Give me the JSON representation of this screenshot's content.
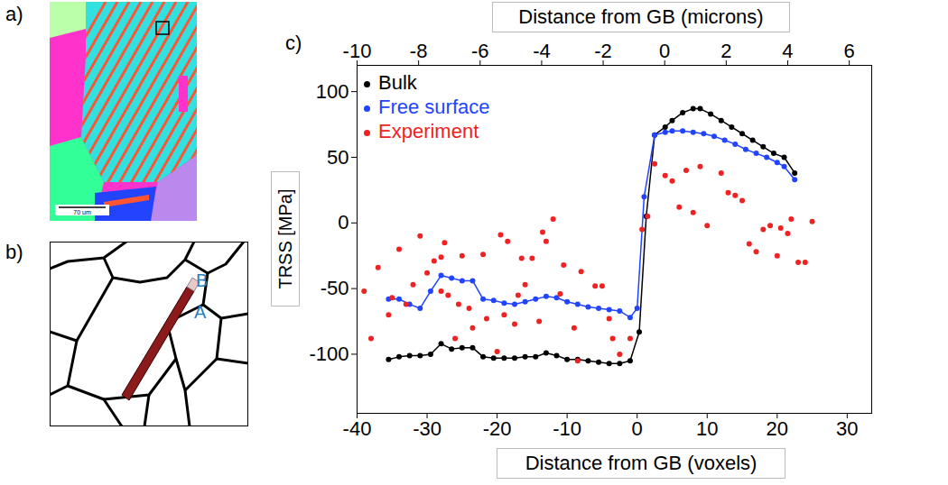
{
  "panels": {
    "a": {
      "label": "a)",
      "scale_bar": "70 um"
    },
    "b": {
      "label": "b)",
      "labels": [
        "B",
        "A"
      ]
    },
    "c": {
      "label": "c)"
    }
  },
  "chart_data": {
    "type": "line",
    "x_label": "Distance from GB (voxels)",
    "x2_label": "Distance from GB (microns)",
    "y_label": "TRSS [MPa]",
    "xlim": [
      -40,
      33.5
    ],
    "xticks": [
      -40,
      -30,
      -20,
      -10,
      0,
      10,
      20,
      30
    ],
    "x2lim": [
      -10,
      6.73
    ],
    "x2ticks": [
      -10,
      -8,
      -6,
      -4,
      -2,
      0,
      2,
      4,
      6
    ],
    "ylim": [
      -145,
      120
    ],
    "yticks": [
      -100,
      -50,
      0,
      50,
      100
    ],
    "legend": "top-left",
    "series": [
      {
        "name": "Bulk",
        "color": "#000000",
        "type": "line",
        "marker": "circle",
        "x": [
          -35.5,
          -34,
          -32.5,
          -31,
          -29.5,
          -28,
          -26.5,
          -25,
          -23.5,
          -22,
          -20.5,
          -19,
          -17.5,
          -16,
          -14.5,
          -13,
          -11.5,
          -10,
          -8.5,
          -7,
          -5.5,
          -4,
          -2.5,
          -1,
          0.3,
          1.3,
          2.5,
          4,
          5,
          6.5,
          8,
          9,
          10.5,
          12,
          13.5,
          15,
          16.5,
          18,
          19.5,
          21,
          22.5
        ],
        "values": [
          -104,
          -102,
          -101,
          -101,
          -100,
          -92,
          -96,
          -95,
          -95,
          -102,
          -103,
          -103,
          -103,
          -102,
          -102,
          -99,
          -101,
          -104,
          -104,
          -105,
          -106,
          -107,
          -107,
          -105,
          -83,
          5,
          67,
          73,
          78,
          84,
          87,
          87,
          83,
          78,
          73,
          68,
          63,
          58,
          53,
          50,
          38
        ]
      },
      {
        "name": "Free surface",
        "color": "#2244ff",
        "type": "line",
        "marker": "circle",
        "x": [
          -35.5,
          -34,
          -32.5,
          -31,
          -29.5,
          -28,
          -26.5,
          -25,
          -23.5,
          -22,
          -20.5,
          -19,
          -17.5,
          -16,
          -14.5,
          -13,
          -11.5,
          -10,
          -8.5,
          -7,
          -5.5,
          -4,
          -2.5,
          -1,
          0,
          1,
          2.5,
          4,
          5,
          6.5,
          8,
          9.5,
          11,
          12.5,
          14,
          15.5,
          17,
          18.5,
          20,
          21,
          22.5
        ],
        "values": [
          -58,
          -58,
          -62,
          -65,
          -52,
          -40,
          -42,
          -44,
          -44,
          -58,
          -59,
          -61,
          -62,
          -60,
          -58,
          -56,
          -57,
          -60,
          -62,
          -64,
          -65,
          -66,
          -67,
          -72,
          -65,
          20,
          67,
          69,
          70,
          70,
          69,
          68,
          66,
          63,
          60,
          56,
          53,
          50,
          46,
          43,
          33
        ]
      },
      {
        "name": "Experiment",
        "color": "#ee2222",
        "type": "scatter",
        "marker": "circle",
        "x": [
          -39,
          -38,
          -37,
          -35.5,
          -35,
          -34,
          -33,
          -32,
          -31,
          -30,
          -29,
          -28,
          -28,
          -27.5,
          -27,
          -26,
          -25.5,
          -25,
          -24,
          -23.5,
          -22,
          -21.5,
          -20,
          -19.5,
          -19,
          -18.5,
          -17.5,
          -17,
          -16.5,
          -16,
          -15,
          -14,
          -13.5,
          -13,
          -12,
          -11,
          -10.5,
          -9,
          -8.5,
          -8,
          -6,
          -5,
          -4,
          -3.5,
          -2.5,
          -1,
          0.7,
          1.5,
          2.5,
          4,
          5,
          6,
          7,
          8,
          9,
          10,
          12,
          13,
          14,
          15,
          16,
          17,
          18,
          19,
          20,
          20.5,
          21.5,
          22,
          23,
          24,
          25
        ],
        "values": [
          -52,
          -88,
          -34,
          -70,
          -57,
          -20,
          -62,
          -47,
          -10,
          -38,
          -29,
          -26,
          -52,
          -15,
          -55,
          -88,
          -62,
          -25,
          -65,
          -80,
          -24,
          -73,
          -98,
          -9,
          -70,
          -14,
          -77,
          -55,
          -27,
          -47,
          -27,
          -75,
          -7,
          -14,
          3,
          -54,
          -32,
          -80,
          -105,
          -37,
          -48,
          -48,
          -73,
          -88,
          -100,
          -88,
          -5,
          5,
          45,
          36,
          32,
          12,
          40,
          8,
          43,
          -2,
          38,
          23,
          21,
          17,
          -16,
          -22,
          -5,
          -2,
          -25,
          -4,
          -8,
          3,
          -30,
          -30,
          1
        ]
      }
    ]
  }
}
